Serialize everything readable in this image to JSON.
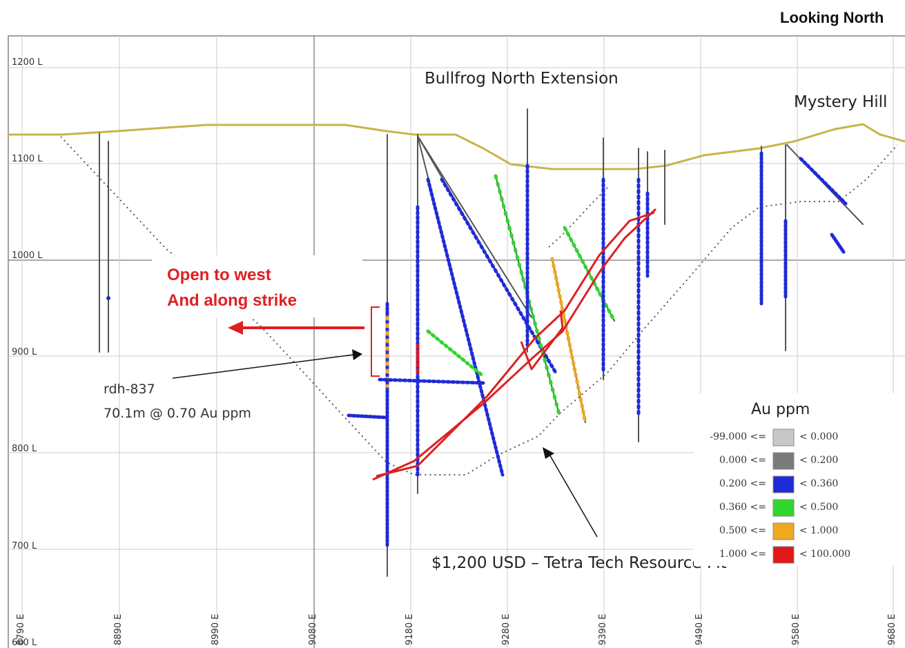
{
  "header": {
    "view_label": "Looking North"
  },
  "levels": [
    "1200 L",
    "1100 L",
    "1000 L",
    "900 L",
    "800 L",
    "700 L",
    "600 L"
  ],
  "eastings": [
    "8790 E",
    "8890 E",
    "8990 E",
    "9080 E",
    "9180 E",
    "9280 E",
    "9390 E",
    "9490 E",
    "9580 E",
    "9680 E"
  ],
  "areas": {
    "bullfrog": "Bullfrog North Extension",
    "mystery": "Mystery Hill"
  },
  "annotations": {
    "open_line1": "Open to west",
    "open_line2": "And along strike",
    "drill_hole": "rdh-837",
    "intercept": "70.1m @ 0.70 Au ppm",
    "pit_shell": "$1,200 USD – Tetra Tech Resource Pit"
  },
  "legend": {
    "title": "Au ppm",
    "items": [
      {
        "lower": "-99.000 <=",
        "upper": "< 0.000",
        "color": "#c8c8c8"
      },
      {
        "lower": "0.000 <=",
        "upper": "< 0.200",
        "color": "#7a7a7a"
      },
      {
        "lower": "0.200 <=",
        "upper": "< 0.360",
        "color": "#1f2bd6"
      },
      {
        "lower": "0.360 <=",
        "upper": "< 0.500",
        "color": "#2fd62f"
      },
      {
        "lower": "0.500 <=",
        "upper": "< 1.000",
        "color": "#f0a820"
      },
      {
        "lower": "1.000 <=",
        "upper": "< 100.000",
        "color": "#e01818"
      }
    ]
  },
  "colors": {
    "topography": "#c8b44a",
    "ore_outline": "#dd2020",
    "pit": "#555555",
    "grid": "#cccccc"
  }
}
